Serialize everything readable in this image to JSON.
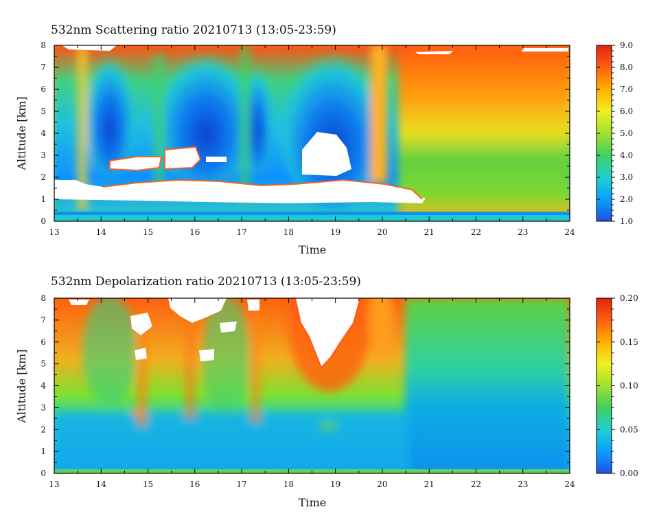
{
  "chart_data": [
    {
      "type": "heatmap",
      "title": "532nm Scattering ratio  20210713 (13:05-23:59)",
      "xlabel": "Time",
      "ylabel": "Altitude [km]",
      "xlim": [
        13,
        24
      ],
      "ylim": [
        0,
        8
      ],
      "xticks": [
        13,
        14,
        15,
        16,
        17,
        18,
        19,
        20,
        21,
        22,
        23,
        24
      ],
      "yticks": [
        0,
        1,
        2,
        3,
        4,
        5,
        6,
        7,
        8
      ],
      "colorbar": {
        "range": [
          1.0,
          9.0
        ],
        "ticks": [
          "1.0",
          "2.0",
          "3.0",
          "4.0",
          "5.0",
          "6.0",
          "7.0",
          "8.0",
          "9.0"
        ]
      },
      "colormap": [
        "#2050e0",
        "#0aa0ff",
        "#20d0d0",
        "#40d060",
        "#a0e030",
        "#f0f020",
        "#ffb000",
        "#ff6010",
        "#e82010"
      ],
      "grid": false
    },
    {
      "type": "heatmap",
      "title": "532nm Depolarization ratio  20210713 (13:05-23:59)",
      "xlabel": "Time",
      "ylabel": "Altitude [km]",
      "xlim": [
        13,
        24
      ],
      "ylim": [
        0,
        8
      ],
      "xticks": [
        13,
        14,
        15,
        16,
        17,
        18,
        19,
        20,
        21,
        22,
        23,
        24
      ],
      "yticks": [
        0,
        1,
        2,
        3,
        4,
        5,
        6,
        7,
        8
      ],
      "colorbar": {
        "range": [
          0.0,
          0.2
        ],
        "ticks": [
          "0.00",
          "0.05",
          "0.10",
          "0.15",
          "0.20"
        ]
      },
      "colormap": [
        "#2050e0",
        "#0aa0ff",
        "#20d0d0",
        "#40d060",
        "#a0e030",
        "#f0f020",
        "#ffb000",
        "#ff6010",
        "#e82010"
      ],
      "grid": false
    }
  ]
}
